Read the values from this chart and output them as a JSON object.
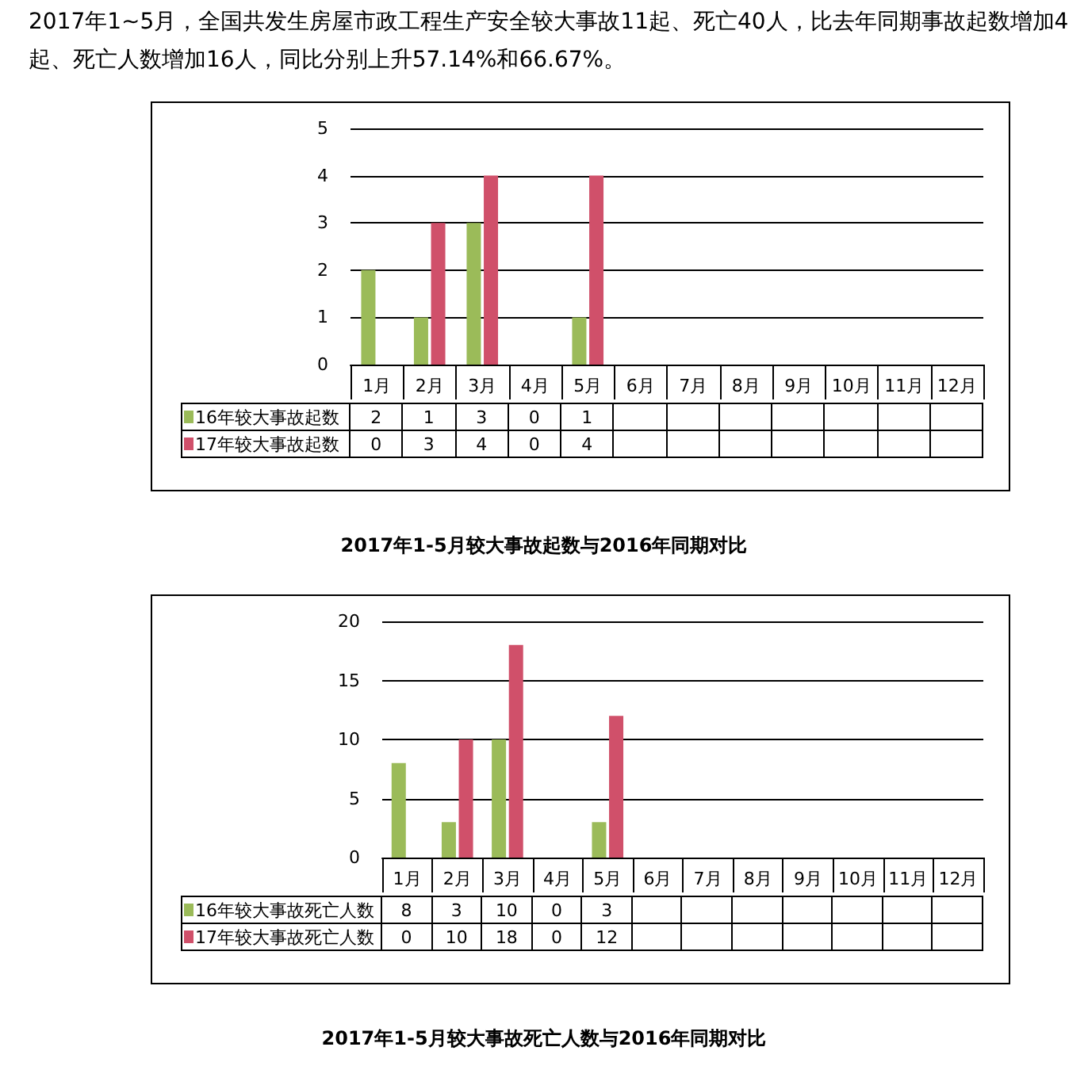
{
  "chart_data": [
    {
      "type": "bar",
      "annotations": [
        "2017年1~5月，全国共发生房屋市政工程生产安全较大事故11起、死亡40人，比去年同期事故起数增加4起、死亡人数增加16人，同比分别上升57.14%和66.67%。"
      ],
      "title": "2017年1-5月较大事故起数与2016年同期对比",
      "categories": [
        "1月",
        "2月",
        "3月",
        "4月",
        "5月",
        "6月",
        "7月",
        "8月",
        "9月",
        "10月",
        "11月",
        "12月"
      ],
      "series": [
        {
          "name": "16年较大事故起数",
          "color": "#9bbb59",
          "values": [
            2,
            1,
            3,
            0,
            1,
            null,
            null,
            null,
            null,
            null,
            null,
            null
          ]
        },
        {
          "name": "17年较大事故起数",
          "color": "#d0506a",
          "values": [
            0,
            3,
            4,
            0,
            4,
            null,
            null,
            null,
            null,
            null,
            null,
            null
          ]
        }
      ],
      "ylim": [
        0,
        5
      ],
      "yticks": [
        0,
        1,
        2,
        3,
        4,
        5
      ],
      "grid": "y",
      "legend": "bottom",
      "data_labels": true
    },
    {
      "type": "bar",
      "title": "2017年1-5月较大事故死亡人数与2016年同期对比",
      "categories": [
        "1月",
        "2月",
        "3月",
        "4月",
        "5月",
        "6月",
        "7月",
        "8月",
        "9月",
        "10月",
        "11月",
        "12月"
      ],
      "series": [
        {
          "name": "16年较大事故死亡人数",
          "color": "#9bbb59",
          "values": [
            8,
            3,
            10,
            0,
            3,
            null,
            null,
            null,
            null,
            null,
            null,
            null
          ]
        },
        {
          "name": "17年较大事故死亡人数",
          "color": "#d0506a",
          "values": [
            0,
            10,
            18,
            0,
            12,
            null,
            null,
            null,
            null,
            null,
            null,
            null
          ]
        }
      ],
      "ylim": [
        0,
        20
      ],
      "yticks": [
        0,
        5,
        10,
        15,
        20
      ],
      "grid": "y",
      "legend": "bottom",
      "data_labels": true
    }
  ]
}
